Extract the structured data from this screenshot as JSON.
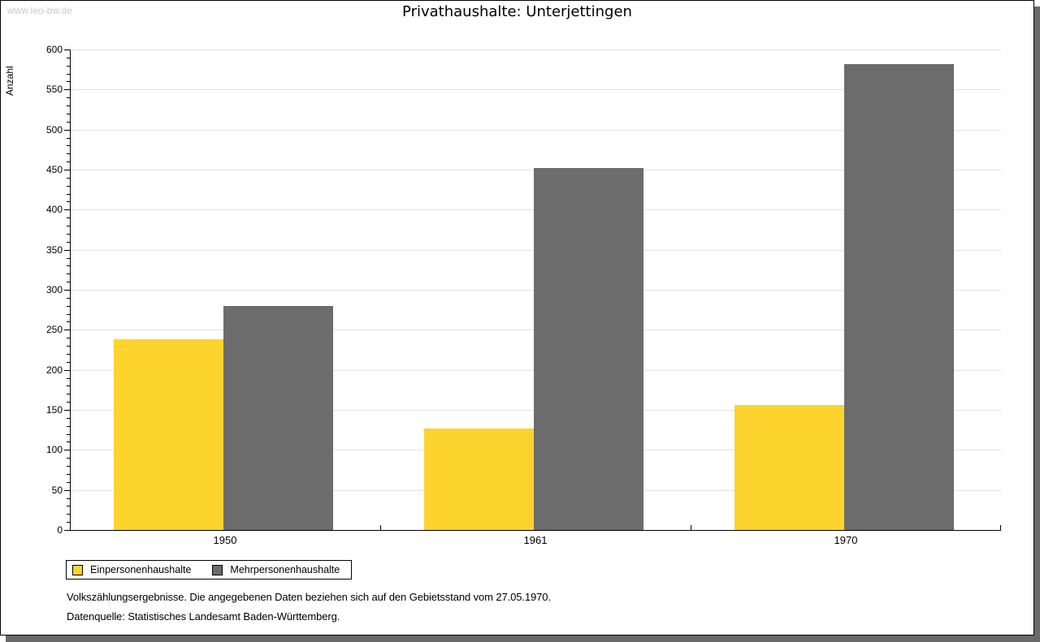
{
  "watermark": "www.leo-bw.de",
  "title": "Privathaushalte: Unterjettingen",
  "chart_data": {
    "type": "bar",
    "title": "Privathaushalte: Unterjettingen",
    "xlabel": "",
    "ylabel": "Anzahl",
    "categories": [
      "1950",
      "1961",
      "1970"
    ],
    "series": [
      {
        "name": "Einpersonenhaushalte",
        "color": "#fcd42d",
        "values": [
          238,
          127,
          156
        ]
      },
      {
        "name": "Mehrpersonenhaushalte",
        "color": "#6c6c6c",
        "values": [
          280,
          452,
          582
        ]
      }
    ],
    "ylim": [
      0,
      600
    ],
    "ytick_step": 50,
    "minor_tick_step": 10,
    "grid": true,
    "legend_position": "bottom-left"
  },
  "legend": {
    "items": [
      {
        "label": "Einpersonenhaushalte",
        "color": "#fcd42d"
      },
      {
        "label": "Mehrpersonenhaushalte",
        "color": "#6c6c6c"
      }
    ]
  },
  "footnotes": {
    "line1": "Volkszählungsergebnisse. Die angegebenen Daten beziehen sich auf den Gebietsstand vom 27.05.1970.",
    "line2": "Datenquelle: Statistisches Landesamt Baden-Württemberg."
  },
  "colors": {
    "bar_yellow": "#fcd42d",
    "bar_gray": "#6c6c6c",
    "gridline": "#e2e2e2",
    "watermark": "#c9c9c9",
    "page_shadow": "#696969",
    "axis": "#000000"
  }
}
